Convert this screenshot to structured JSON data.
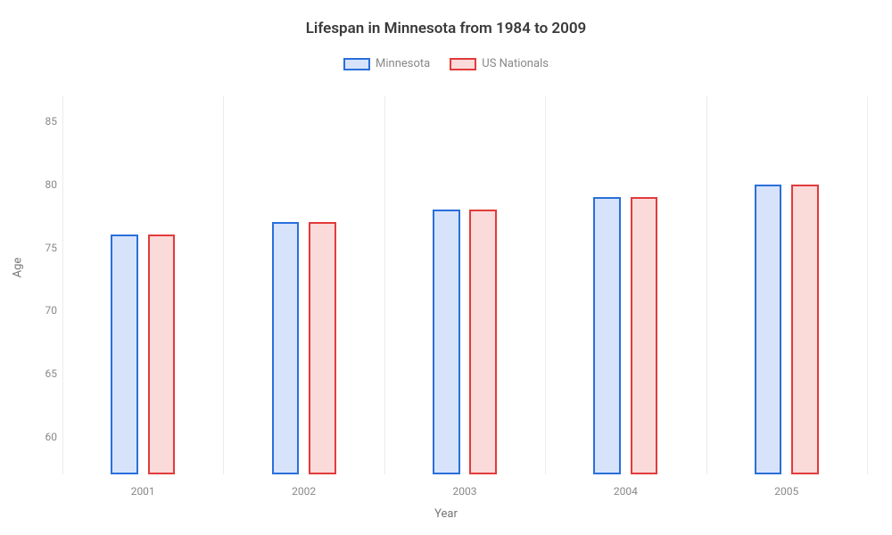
{
  "chart": {
    "type": "bar",
    "title": "Lifespan in Minnesota from 1984 to 2009",
    "title_fontsize": 17,
    "title_color": "#3a3a3a",
    "legend_fontsize": 13,
    "tick_fontsize": 12,
    "categories": [
      "2001",
      "2002",
      "2003",
      "2004",
      "2005"
    ],
    "series": [
      {
        "name": "Minnesota",
        "values": [
          76,
          77,
          78,
          79,
          80
        ],
        "border_color": "#2a6fdb",
        "fill_color": "#d7e3fb"
      },
      {
        "name": "US Nationals",
        "values": [
          76,
          77,
          78,
          79,
          80
        ],
        "border_color": "#e23b3b",
        "fill_color": "#fbdada"
      }
    ],
    "y_axis": {
      "label": "Age",
      "min": 57,
      "max": 87,
      "ticks": [
        60,
        65,
        70,
        75,
        80,
        85
      ]
    },
    "x_axis": {
      "label": "Year"
    },
    "gridline_color": "#ececec",
    "tick_color": "#888888",
    "axis_label_color": "#757575",
    "background_color": "#ffffff",
    "bar_width_pct": 3.4,
    "bar_gap_pct": 1.2
  }
}
